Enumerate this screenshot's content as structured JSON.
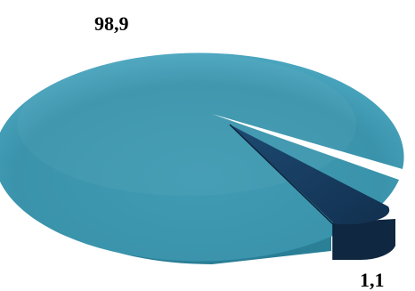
{
  "chart_data": {
    "type": "pie",
    "style": "3d",
    "title": "",
    "slices": [
      {
        "label": "98,9",
        "value": 98.9,
        "color": "#3a95ad"
      },
      {
        "label": "1,1",
        "value": 1.1,
        "color": "#15375a",
        "exploded": true
      }
    ]
  }
}
